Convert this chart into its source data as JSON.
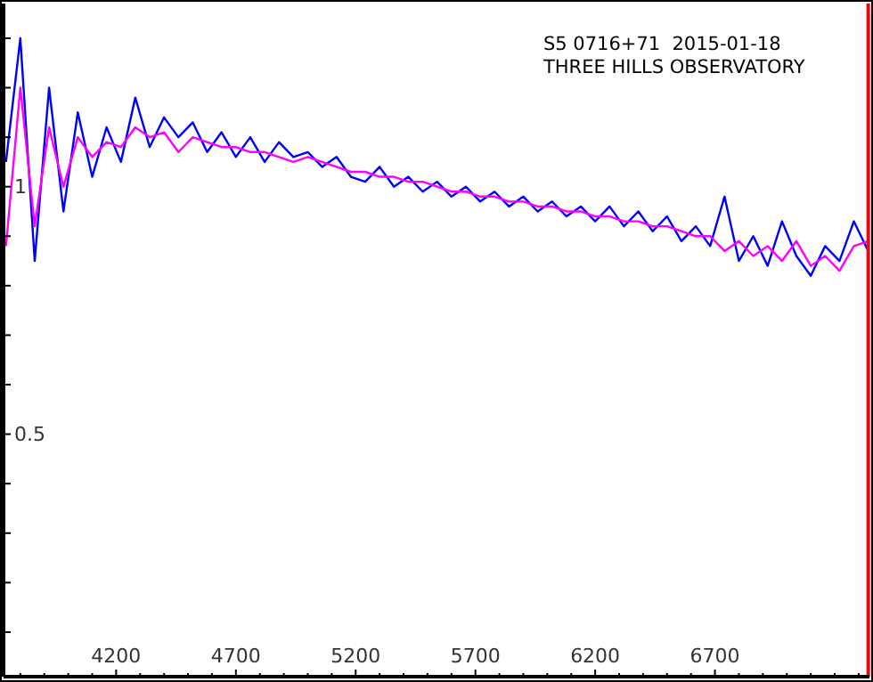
{
  "chart_data": {
    "type": "line",
    "annotations": [
      "S5 0716+71  2015-01-18",
      "THREE HILLS OBSERVATORY"
    ],
    "xlim": [
      3730,
      7345
    ],
    "xticks": [
      {
        "value": 3800,
        "label": null
      },
      {
        "value": 3900,
        "label": null
      },
      {
        "value": 4000,
        "label": null
      },
      {
        "value": 4100,
        "label": null
      },
      4200,
      {
        "value": 4300,
        "label": null
      },
      {
        "value": 4400,
        "label": null
      },
      {
        "value": 4500,
        "label": null
      },
      {
        "value": 4600,
        "label": null
      },
      4700,
      {
        "value": 4800,
        "label": null
      },
      {
        "value": 4900,
        "label": null
      },
      {
        "value": 5000,
        "label": null
      },
      {
        "value": 5100,
        "label": null
      },
      5200,
      {
        "value": 5300,
        "label": null
      },
      {
        "value": 5400,
        "label": null
      },
      {
        "value": 5500,
        "label": null
      },
      {
        "value": 5600,
        "label": null
      },
      5700,
      {
        "value": 5800,
        "label": null
      },
      {
        "value": 5900,
        "label": null
      },
      {
        "value": 6000,
        "label": null
      },
      {
        "value": 6100,
        "label": null
      },
      6200,
      {
        "value": 6300,
        "label": null
      },
      {
        "value": 6400,
        "label": null
      },
      {
        "value": 6500,
        "label": null
      },
      {
        "value": 6600,
        "label": null
      },
      6700,
      {
        "value": 6800,
        "label": null
      },
      {
        "value": 6900,
        "label": null
      },
      {
        "value": 7000,
        "label": null
      },
      {
        "value": 7100,
        "label": null
      },
      {
        "value": 7200,
        "label": null
      },
      {
        "value": 7300,
        "label": null
      }
    ],
    "ylim": [
      0.01,
      1.37
    ],
    "yticks": [
      {
        "value": 0.1,
        "label": null
      },
      {
        "value": 0.2,
        "label": null
      },
      {
        "value": 0.3,
        "label": null
      },
      {
        "value": 0.4,
        "label": null
      },
      0.5,
      {
        "value": 0.6,
        "label": null
      },
      {
        "value": 0.7,
        "label": null
      },
      {
        "value": 0.8,
        "label": null
      },
      {
        "value": 0.9,
        "label": null
      },
      1,
      {
        "value": 1.1,
        "label": null
      },
      {
        "value": 1.2,
        "label": null
      },
      {
        "value": 1.3,
        "label": null
      }
    ],
    "x": [
      3740,
      3800,
      3860,
      3920,
      3980,
      4040,
      4100,
      4160,
      4220,
      4280,
      4340,
      4400,
      4460,
      4520,
      4580,
      4640,
      4700,
      4760,
      4820,
      4880,
      4940,
      5000,
      5060,
      5120,
      5180,
      5240,
      5300,
      5360,
      5420,
      5480,
      5540,
      5600,
      5660,
      5720,
      5780,
      5840,
      5900,
      5960,
      6020,
      6080,
      6140,
      6200,
      6260,
      6320,
      6380,
      6440,
      6500,
      6560,
      6620,
      6680,
      6740,
      6800,
      6860,
      6920,
      6980,
      7040,
      7100,
      7160,
      7220,
      7280,
      7340
    ],
    "series": [
      {
        "color": "#0000ff",
        "values": [
          1.05,
          1.3,
          0.85,
          1.2,
          0.95,
          1.15,
          1.02,
          1.12,
          1.05,
          1.18,
          1.08,
          1.14,
          1.1,
          1.13,
          1.07,
          1.11,
          1.06,
          1.1,
          1.05,
          1.09,
          1.06,
          1.07,
          1.04,
          1.06,
          1.02,
          1.01,
          1.04,
          1.0,
          1.02,
          0.99,
          1.01,
          0.98,
          1.0,
          0.97,
          0.99,
          0.96,
          0.98,
          0.95,
          0.97,
          0.94,
          0.96,
          0.93,
          0.96,
          0.92,
          0.95,
          0.91,
          0.94,
          0.89,
          0.92,
          0.88,
          0.98,
          0.85,
          0.9,
          0.84,
          0.93,
          0.86,
          0.82,
          0.88,
          0.85,
          0.93,
          0.87
        ]
      },
      {
        "color": "#ff00ff",
        "values": [
          0.88,
          1.2,
          0.92,
          1.12,
          1.0,
          1.1,
          1.06,
          1.09,
          1.08,
          1.12,
          1.1,
          1.11,
          1.07,
          1.1,
          1.09,
          1.08,
          1.08,
          1.07,
          1.07,
          1.06,
          1.05,
          1.06,
          1.05,
          1.04,
          1.03,
          1.03,
          1.02,
          1.02,
          1.01,
          1.01,
          1.0,
          0.99,
          0.99,
          0.98,
          0.98,
          0.97,
          0.97,
          0.96,
          0.96,
          0.95,
          0.95,
          0.94,
          0.94,
          0.93,
          0.93,
          0.92,
          0.92,
          0.91,
          0.9,
          0.9,
          0.87,
          0.89,
          0.86,
          0.88,
          0.85,
          0.89,
          0.84,
          0.86,
          0.83,
          0.88,
          0.89
        ]
      }
    ],
    "ref_lines": [
      {
        "axis": "x",
        "value": 7340,
        "color": "#ff0000"
      }
    ],
    "grid": false
  }
}
